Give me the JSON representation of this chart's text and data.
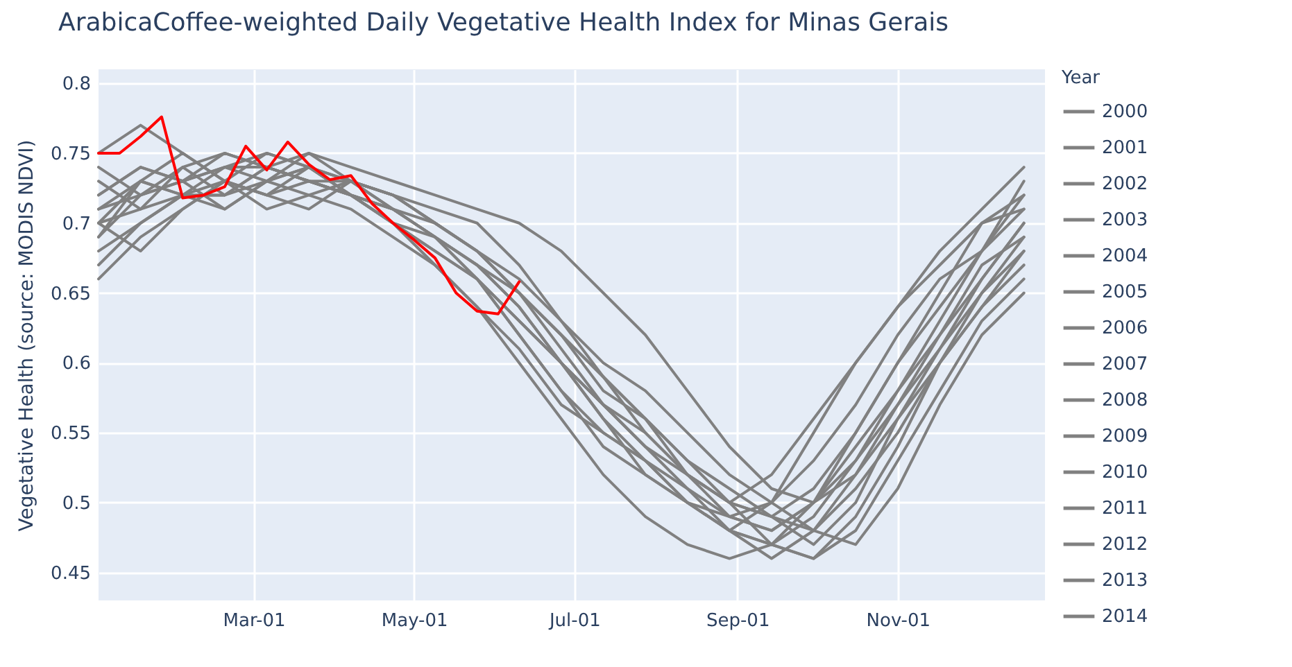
{
  "chart_data": {
    "type": "line",
    "title": "ArabicaCoffee-weighted Daily Vegetative Health Index for Minas Gerais",
    "ylabel": "Vegetative Health (source: MODIS NDVI)",
    "legend_title": "Year",
    "legend": "right",
    "grid": true,
    "xlim": [
      "--01-01",
      "--12-27"
    ],
    "xticks": [
      {
        "value": "--03-01",
        "label": "Mar-01"
      },
      {
        "value": "--05-01",
        "label": "May-01"
      },
      {
        "value": "--07-01",
        "label": "Jul-01"
      },
      {
        "value": "--09-01",
        "label": "Sep-01"
      },
      {
        "value": "--11-01",
        "label": "Nov-01"
      }
    ],
    "ylim": [
      0.43,
      0.81
    ],
    "yticks": [
      0.45,
      0.5,
      0.55,
      0.6,
      0.65,
      0.7,
      0.75,
      0.8
    ],
    "x": [
      "--01-01",
      "--01-17",
      "--02-02",
      "--02-18",
      "--03-06",
      "--03-22",
      "--04-07",
      "--04-23",
      "--05-09",
      "--05-25",
      "--06-10",
      "--06-26",
      "--07-12",
      "--07-28",
      "--08-13",
      "--08-29",
      "--09-14",
      "--09-30",
      "--10-16",
      "--11-01",
      "--11-17",
      "--12-03",
      "--12-19"
    ],
    "series": [
      {
        "name": "2000",
        "color": "#808080",
        "values": [
          0.72,
          0.74,
          0.73,
          0.74,
          0.74,
          0.73,
          0.72,
          0.7,
          0.68,
          0.66,
          0.62,
          0.58,
          0.55,
          0.53,
          0.5,
          0.49,
          0.48,
          0.5,
          0.55,
          0.6,
          0.65,
          0.7,
          0.72
        ]
      },
      {
        "name": "2001",
        "color": "#808080",
        "values": [
          0.7,
          0.73,
          0.75,
          0.73,
          0.75,
          0.74,
          0.73,
          0.72,
          0.7,
          0.68,
          0.65,
          0.62,
          0.58,
          0.56,
          0.52,
          0.5,
          0.47,
          0.49,
          0.53,
          0.58,
          0.63,
          0.68,
          0.73
        ]
      },
      {
        "name": "2002",
        "color": "#808080",
        "values": [
          0.68,
          0.7,
          0.72,
          0.71,
          0.73,
          0.74,
          0.72,
          0.71,
          0.69,
          0.67,
          0.64,
          0.6,
          0.57,
          0.54,
          0.51,
          0.48,
          0.5,
          0.55,
          0.6,
          0.64,
          0.67,
          0.7,
          0.71
        ]
      },
      {
        "name": "2003",
        "color": "#808080",
        "values": [
          0.75,
          0.77,
          0.75,
          0.73,
          0.72,
          0.74,
          0.73,
          0.72,
          0.71,
          0.7,
          0.67,
          0.63,
          0.59,
          0.56,
          0.53,
          0.5,
          0.49,
          0.47,
          0.5,
          0.56,
          0.61,
          0.66,
          0.7
        ]
      },
      {
        "name": "2004",
        "color": "#808080",
        "values": [
          0.71,
          0.72,
          0.74,
          0.75,
          0.74,
          0.73,
          0.73,
          0.71,
          0.69,
          0.66,
          0.62,
          0.58,
          0.54,
          0.52,
          0.5,
          0.48,
          0.46,
          0.48,
          0.52,
          0.57,
          0.62,
          0.67,
          0.69
        ]
      },
      {
        "name": "2005",
        "color": "#808080",
        "values": [
          0.66,
          0.69,
          0.71,
          0.73,
          0.72,
          0.73,
          0.72,
          0.7,
          0.67,
          0.64,
          0.61,
          0.57,
          0.55,
          0.53,
          0.51,
          0.49,
          0.5,
          0.53,
          0.57,
          0.62,
          0.66,
          0.68,
          0.71
        ]
      },
      {
        "name": "2006",
        "color": "#808080",
        "values": [
          0.7,
          0.71,
          0.72,
          0.74,
          0.75,
          0.74,
          0.72,
          0.7,
          0.69,
          0.66,
          0.63,
          0.6,
          0.56,
          0.53,
          0.5,
          0.48,
          0.47,
          0.46,
          0.49,
          0.54,
          0.6,
          0.65,
          0.68
        ]
      },
      {
        "name": "2007",
        "color": "#808080",
        "values": [
          0.69,
          0.73,
          0.72,
          0.72,
          0.73,
          0.72,
          0.71,
          0.69,
          0.67,
          0.64,
          0.6,
          0.56,
          0.52,
          0.49,
          0.47,
          0.46,
          0.47,
          0.5,
          0.54,
          0.58,
          0.62,
          0.66,
          0.7
        ]
      },
      {
        "name": "2008",
        "color": "#808080",
        "values": [
          0.73,
          0.71,
          0.74,
          0.72,
          0.74,
          0.75,
          0.73,
          0.72,
          0.7,
          0.68,
          0.65,
          0.62,
          0.59,
          0.56,
          0.53,
          0.51,
          0.49,
          0.48,
          0.51,
          0.55,
          0.6,
          0.64,
          0.67
        ]
      },
      {
        "name": "2009",
        "color": "#808080",
        "values": [
          0.72,
          0.74,
          0.73,
          0.75,
          0.74,
          0.73,
          0.72,
          0.7,
          0.68,
          0.66,
          0.63,
          0.6,
          0.57,
          0.55,
          0.52,
          0.5,
          0.52,
          0.56,
          0.6,
          0.64,
          0.68,
          0.71,
          0.74
        ]
      },
      {
        "name": "2010",
        "color": "#808080",
        "values": [
          0.67,
          0.7,
          0.72,
          0.73,
          0.71,
          0.72,
          0.73,
          0.71,
          0.69,
          0.67,
          0.64,
          0.6,
          0.56,
          0.52,
          0.5,
          0.48,
          0.47,
          0.46,
          0.48,
          0.53,
          0.58,
          0.63,
          0.66
        ]
      },
      {
        "name": "2011",
        "color": "#808080",
        "values": [
          0.74,
          0.72,
          0.73,
          0.71,
          0.73,
          0.74,
          0.72,
          0.71,
          0.7,
          0.68,
          0.65,
          0.61,
          0.57,
          0.54,
          0.52,
          0.5,
          0.49,
          0.51,
          0.55,
          0.6,
          0.64,
          0.68,
          0.72
        ]
      },
      {
        "name": "2012",
        "color": "#808080",
        "values": [
          0.7,
          0.68,
          0.71,
          0.73,
          0.72,
          0.71,
          0.73,
          0.72,
          0.7,
          0.68,
          0.66,
          0.63,
          0.6,
          0.58,
          0.55,
          0.52,
          0.5,
          0.48,
          0.47,
          0.51,
          0.57,
          0.62,
          0.65
        ]
      },
      {
        "name": "2013",
        "color": "#808080",
        "values": [
          0.71,
          0.73,
          0.72,
          0.72,
          0.74,
          0.73,
          0.72,
          0.71,
          0.69,
          0.67,
          0.65,
          0.62,
          0.59,
          0.55,
          0.52,
          0.49,
          0.48,
          0.5,
          0.53,
          0.57,
          0.61,
          0.65,
          0.69
        ]
      },
      {
        "name": "2014",
        "color": "#808080",
        "values": [
          0.69,
          0.72,
          0.73,
          0.74,
          0.73,
          0.75,
          0.74,
          0.73,
          0.72,
          0.71,
          0.7,
          0.68,
          0.65,
          0.62,
          0.58,
          0.54,
          0.51,
          0.5,
          0.52,
          0.56,
          0.6,
          0.64,
          0.68
        ]
      },
      {
        "color": "#ff0000",
        "x": [
          "--01-01",
          "--01-09",
          "--01-17",
          "--01-25",
          "--02-02",
          "--02-10",
          "--02-18",
          "--02-26",
          "--03-06",
          "--03-14",
          "--03-22",
          "--03-30",
          "--04-07",
          "--04-15",
          "--04-23",
          "--05-01",
          "--05-09",
          "--05-17",
          "--05-25",
          "--06-02",
          "--06-10"
        ],
        "values": [
          0.75,
          0.75,
          0.762,
          0.776,
          0.718,
          0.72,
          0.726,
          0.755,
          0.738,
          0.758,
          0.742,
          0.731,
          0.734,
          0.714,
          0.7,
          0.688,
          0.675,
          0.65,
          0.637,
          0.635,
          0.658
        ]
      }
    ]
  }
}
